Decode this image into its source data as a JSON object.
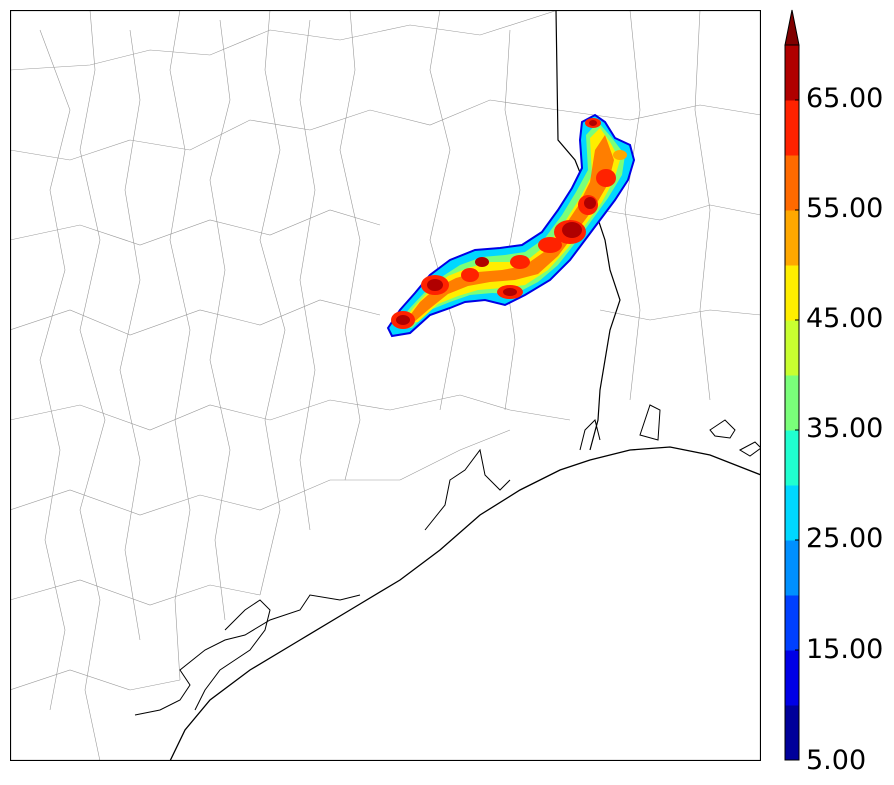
{
  "map": {
    "county_line_color": "#9a9a9a",
    "coast_color": "#000000",
    "frame_color": "#000000"
  },
  "colorbar": {
    "extend": "max",
    "tick_labels": [
      "5.00",
      "15.00",
      "25.00",
      "35.00",
      "45.00",
      "55.00",
      "65.00"
    ],
    "bins": [
      {
        "from": 5,
        "to": 10,
        "color": "#00009a"
      },
      {
        "from": 10,
        "to": 15,
        "color": "#0000e6"
      },
      {
        "from": 15,
        "to": 20,
        "color": "#0040ff"
      },
      {
        "from": 20,
        "to": 25,
        "color": "#0090ff"
      },
      {
        "from": 25,
        "to": 30,
        "color": "#00d8ff"
      },
      {
        "from": 30,
        "to": 35,
        "color": "#20ffd0"
      },
      {
        "from": 35,
        "to": 40,
        "color": "#7aff7a"
      },
      {
        "from": 40,
        "to": 45,
        "color": "#c8ff30"
      },
      {
        "from": 45,
        "to": 50,
        "color": "#ffee00"
      },
      {
        "from": 50,
        "to": 55,
        "color": "#ffa800"
      },
      {
        "from": 55,
        "to": 60,
        "color": "#ff6a00"
      },
      {
        "from": 60,
        "to": 65,
        "color": "#ff2200"
      },
      {
        "from": 65,
        "to": 70,
        "color": "#b00000"
      }
    ],
    "over_color": "#800000"
  }
}
